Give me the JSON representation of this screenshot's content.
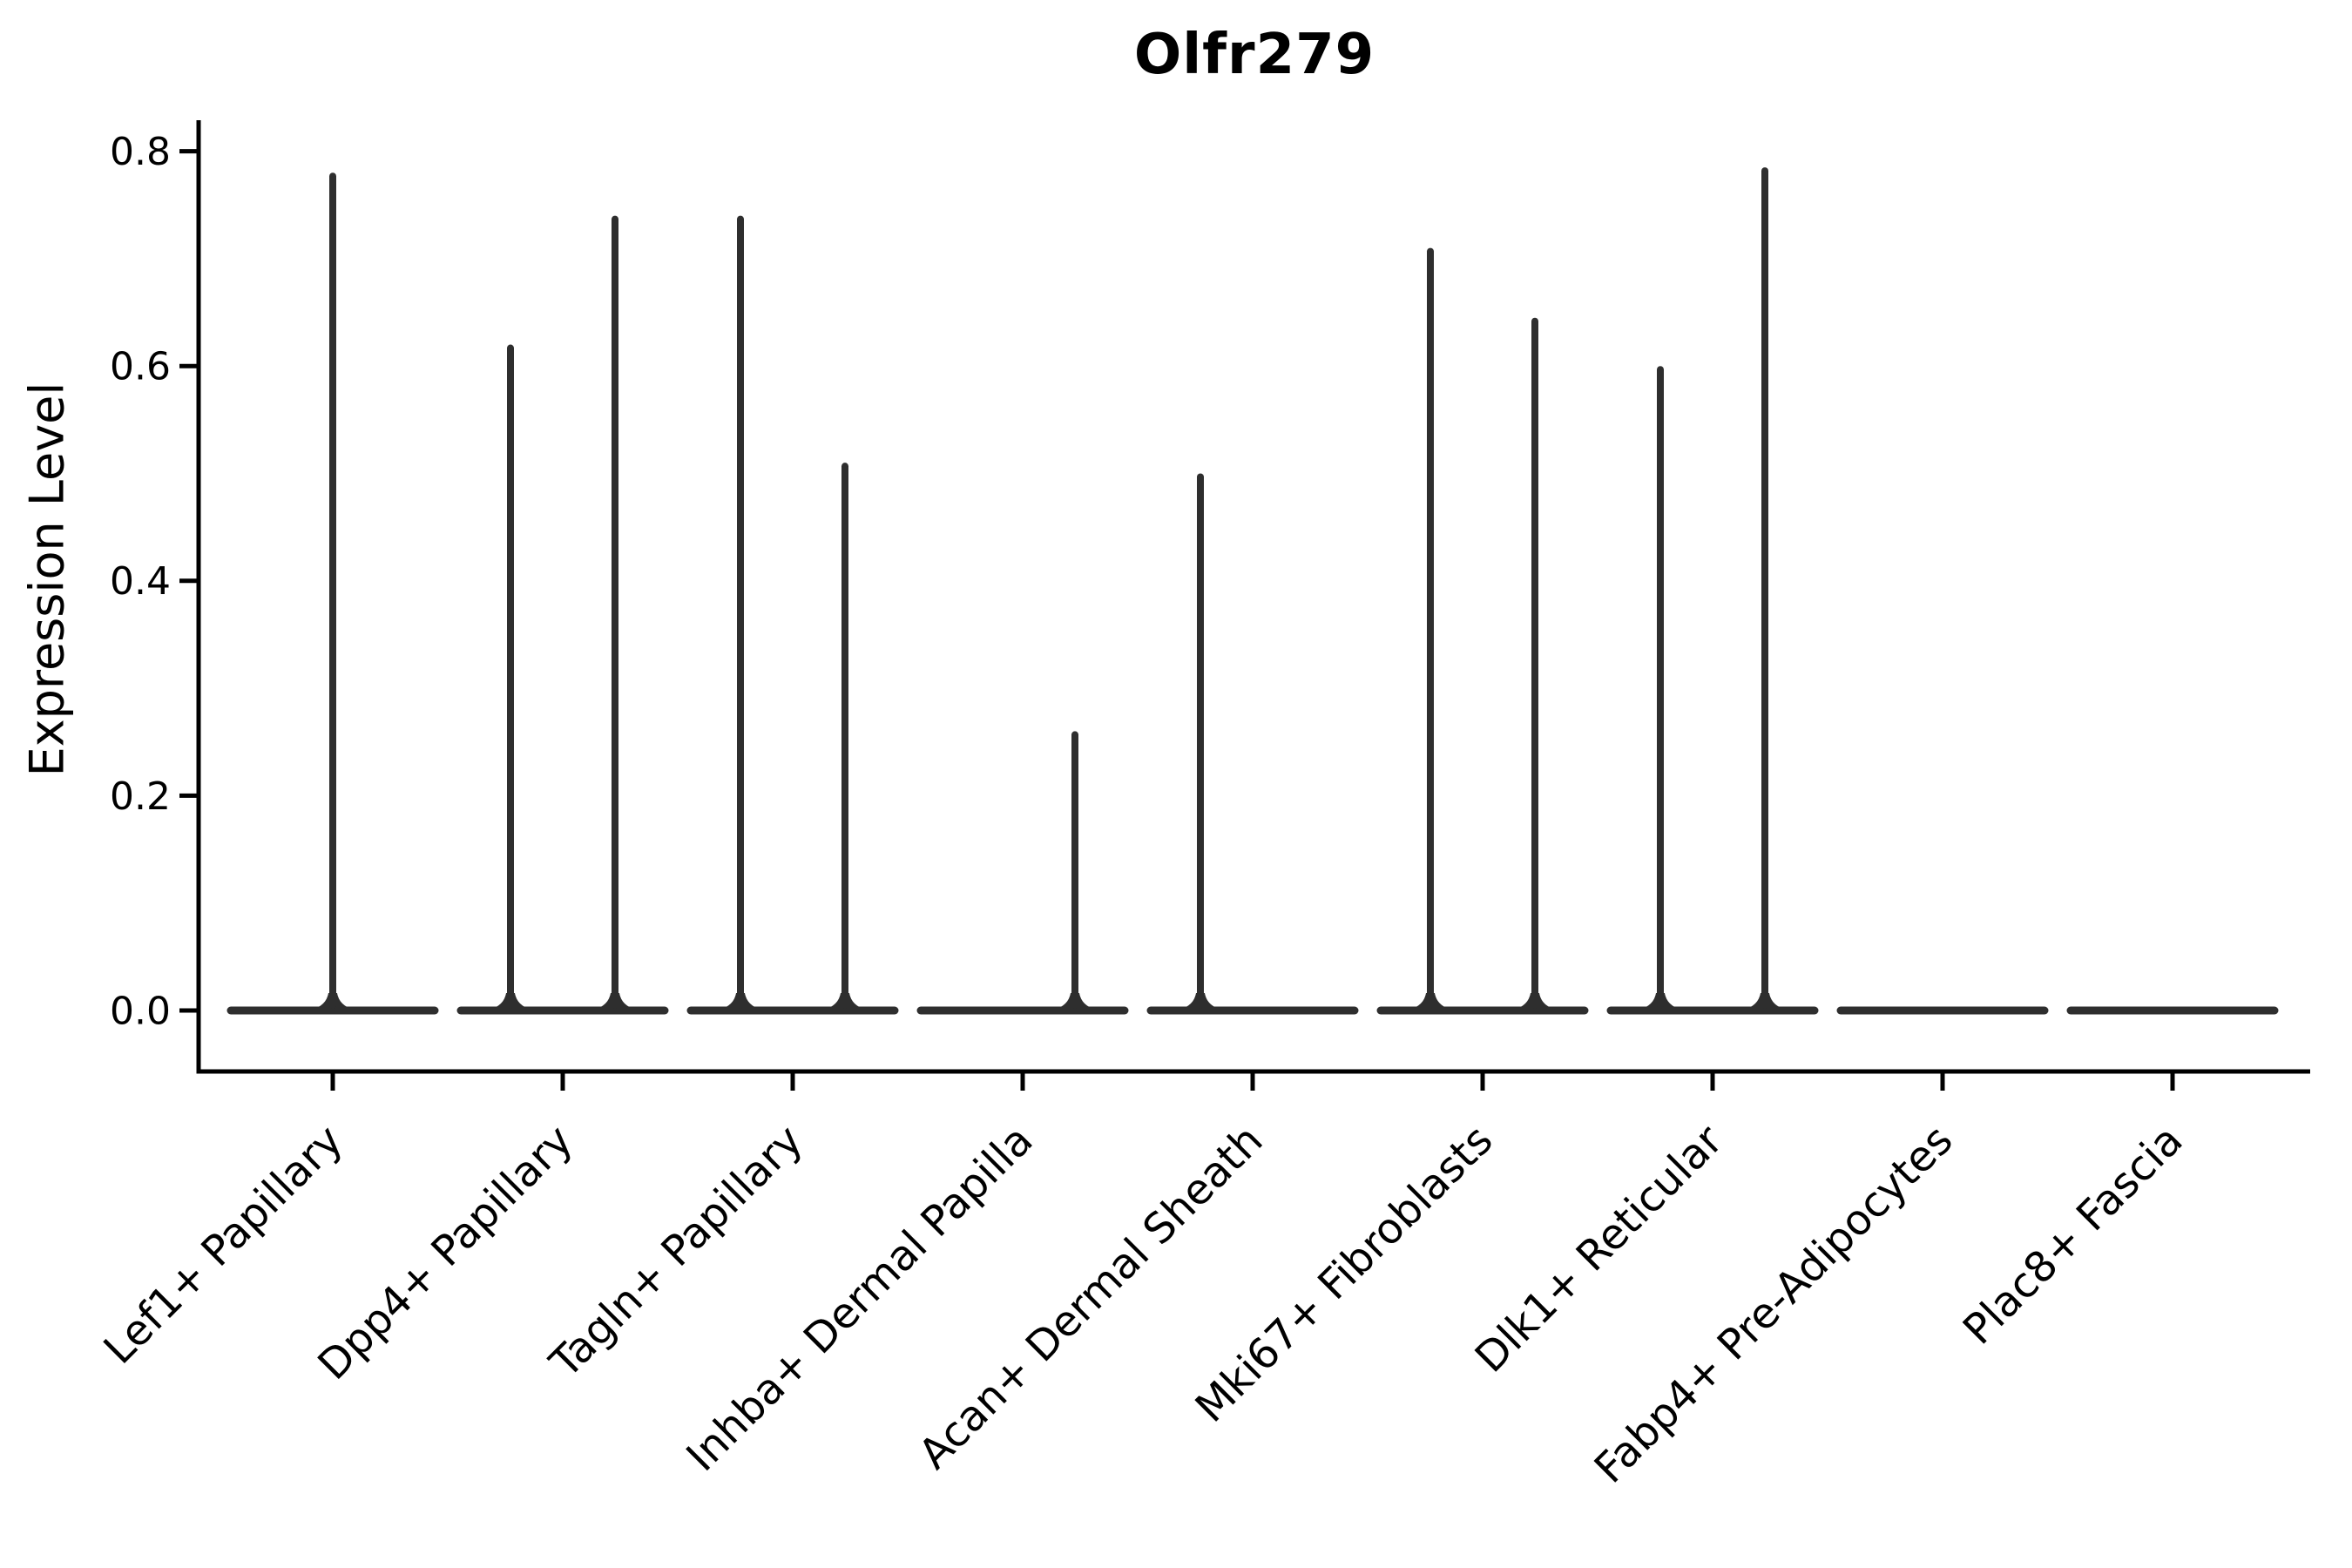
{
  "figure": {
    "background_color": "#ffffff",
    "text_color": "#000000",
    "violin_color": "#2e2e2e",
    "axis_color": "#000000"
  },
  "chart_data": {
    "type": "violin",
    "title": "Olfr279",
    "xlabel": "",
    "ylabel": "Expression Level",
    "ylim": [
      0,
      0.8
    ],
    "yticks": [
      0,
      0.2,
      0.4,
      0.6,
      0.8
    ],
    "ytick_labels": [
      "0.0",
      "0.2",
      "0.4",
      "0.6",
      "0.8"
    ],
    "grid": false,
    "legend": "none",
    "x_tick_label_rotation_deg": 45,
    "categories": [
      "Lef1+ Papillary",
      "Dpp4+ Papillary",
      "Tagln+ Papillary",
      "Inhba+ Dermal Papilla",
      "Acan+ Dermal Sheath",
      "Mki67+ Fibroblasts",
      "Dlk1+ Reticular",
      "Fabp4+ Pre-Adipocytes",
      "Plac8+ Fascia"
    ],
    "violins": [
      {
        "label": "Lef1+ Papillary",
        "baseline_value": 0,
        "spikes": [
          {
            "pos": "center",
            "value": 0.78
          }
        ]
      },
      {
        "label": "Dpp4+ Papillary",
        "baseline_value": 0,
        "spikes": [
          {
            "pos": "left",
            "value": 0.62
          },
          {
            "pos": "right",
            "value": 0.74
          }
        ]
      },
      {
        "label": "Tagln+ Papillary",
        "baseline_value": 0,
        "spikes": [
          {
            "pos": "left",
            "value": 0.74
          },
          {
            "pos": "right",
            "value": 0.51
          }
        ]
      },
      {
        "label": "Inhba+ Dermal Papilla",
        "baseline_value": 0,
        "spikes": [
          {
            "pos": "right",
            "value": 0.26
          }
        ]
      },
      {
        "label": "Acan+ Dermal Sheath",
        "baseline_value": 0,
        "spikes": [
          {
            "pos": "left",
            "value": 0.5
          }
        ]
      },
      {
        "label": "Mki67+ Fibroblasts",
        "baseline_value": 0,
        "spikes": [
          {
            "pos": "left",
            "value": 0.71
          },
          {
            "pos": "right",
            "value": 0.645
          }
        ]
      },
      {
        "label": "Dlk1+ Reticular",
        "baseline_value": 0,
        "spikes": [
          {
            "pos": "left",
            "value": 0.6
          },
          {
            "pos": "right",
            "value": 0.785
          }
        ]
      },
      {
        "label": "Fabp4+ Pre-Adipocytes",
        "baseline_value": 0,
        "spikes": []
      },
      {
        "label": "Plac8+ Fascia",
        "baseline_value": 0,
        "spikes": []
      }
    ]
  }
}
